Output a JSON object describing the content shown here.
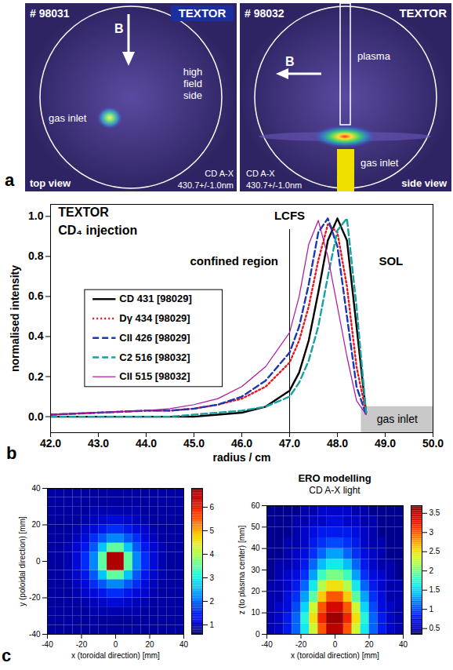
{
  "chart_data": [
    {
      "type": "image",
      "panel": "a",
      "shot": "# 98031",
      "machine": "TEXTOR",
      "field": "B",
      "labels": [
        "gas inlet",
        "high field side"
      ],
      "filter": "CD A-X",
      "wavelength": "430.7+/-1.0nm",
      "view": "top view"
    },
    {
      "type": "image",
      "shot": "# 98032",
      "machine": "TEXTOR",
      "field": "B",
      "labels": [
        "plasma",
        "gas inlet"
      ],
      "filter": "CD A-X",
      "wavelength": "430.7+/-1.0nm",
      "view": "side view"
    },
    {
      "type": "line",
      "panel": "b",
      "annotations": [
        "TEXTOR",
        "CD₄ injection",
        "confined region",
        "SOL"
      ],
      "lcfs": {
        "label": "LCFS",
        "radius": 47.0
      },
      "gas_inlet": {
        "label": "gas inlet",
        "x_range": [
          48.5,
          50.0
        ],
        "top": 0.05
      },
      "xlabel": "radius / cm",
      "ylabel": "normalised intensity",
      "xlim": [
        42,
        50
      ],
      "xticks": [
        {
          "value": 42,
          "label": "42.0"
        },
        {
          "value": 43,
          "label": "43.0"
        },
        {
          "value": 44,
          "label": "44.0"
        },
        {
          "value": 45,
          "label": "45.0"
        },
        {
          "value": 46,
          "label": "46.0"
        },
        {
          "value": 47,
          "label": "47.0"
        },
        {
          "value": 48,
          "label": "48.0"
        },
        {
          "value": 49,
          "label": "49.0"
        },
        {
          "value": 50,
          "label": "50.0"
        }
      ],
      "ylim": [
        -0.08,
        1.06
      ],
      "yticks": [
        {
          "value": 0,
          "label": "0.0"
        },
        0.2,
        0.4,
        0.6,
        0.8,
        {
          "value": 1,
          "label": "1.0"
        }
      ],
      "legend": "center left",
      "x": [
        42,
        43,
        44,
        44.5,
        45,
        45.5,
        46,
        46.5,
        47,
        47.2,
        47.4,
        47.6,
        47.8,
        48.0,
        48.2,
        48.4,
        48.6
      ],
      "series": [
        {
          "name": "CD 431 [98029]",
          "color": "#000000",
          "line_style": "solid",
          "values": [
            0,
            0,
            0,
            0,
            0,
            0.01,
            0.02,
            0.05,
            0.13,
            0.22,
            0.38,
            0.62,
            0.88,
            0.99,
            0.88,
            0.45,
            0.02
          ]
        },
        {
          "name": "Dγ 434 [98029]",
          "color": "#e8141c",
          "line_style": "dotted",
          "values": [
            0.01,
            0.02,
            0.03,
            0.03,
            0.04,
            0.06,
            0.09,
            0.15,
            0.27,
            0.38,
            0.55,
            0.78,
            0.96,
            0.92,
            0.65,
            0.25,
            0.02
          ]
        },
        {
          "name": "CII 426 [98029]",
          "color": "#1c36b8",
          "line_style": "dashed",
          "values": [
            0.01,
            0.02,
            0.03,
            0.03,
            0.04,
            0.06,
            0.1,
            0.18,
            0.32,
            0.45,
            0.66,
            0.92,
            0.99,
            0.85,
            0.5,
            0.15,
            0.01
          ]
        },
        {
          "name": "C2 516 [98032]",
          "color": "#17a0a0",
          "line_style": "dashed",
          "values": [
            0,
            0,
            0,
            0,
            0.01,
            0.02,
            0.03,
            0.05,
            0.1,
            0.17,
            0.28,
            0.45,
            0.7,
            0.93,
            0.99,
            0.55,
            0.02
          ]
        },
        {
          "name": "CII 515 [98032]",
          "color": "#b0129c",
          "line_style": "solid",
          "values": [
            0.01,
            0.02,
            0.03,
            0.04,
            0.06,
            0.09,
            0.15,
            0.25,
            0.42,
            0.6,
            0.86,
            0.98,
            0.8,
            0.55,
            0.3,
            0.08,
            0.01
          ]
        }
      ]
    },
    {
      "type": "heatmap",
      "panel": "c",
      "xlabel": "x (toroidal direction) [mm]",
      "ylabel": "y (poloidal direction) [mm]",
      "xlim": [
        -40,
        40
      ],
      "ylim": [
        -40,
        40
      ],
      "xticks": [
        -40,
        -20,
        0,
        20,
        40
      ],
      "yticks": [
        -40,
        -20,
        0,
        20,
        40
      ],
      "x": [
        -37.5,
        -32.5,
        -27.5,
        -22.5,
        -17.5,
        -12.5,
        -7.5,
        -2.5,
        2.5,
        7.5,
        12.5,
        17.5,
        22.5,
        27.5,
        32.5,
        37.5
      ],
      "y": [
        -37.5,
        -32.5,
        -27.5,
        -22.5,
        -17.5,
        -12.5,
        -7.5,
        -2.5,
        2.5,
        7.5,
        12.5,
        17.5,
        22.5,
        27.5,
        32.5,
        37.5
      ],
      "cells": [
        [
          0.8,
          0.8,
          0.8,
          0.8,
          0.8,
          0.8,
          0.8,
          0.8,
          0.8,
          0.8,
          0.8,
          0.8,
          0.8,
          0.8,
          0.8,
          0.8
        ],
        [
          0.8,
          0.8,
          0.8,
          0.8,
          0.8,
          0.8,
          0.8,
          0.8,
          0.8,
          0.8,
          0.8,
          0.8,
          0.8,
          0.8,
          0.8,
          0.8
        ],
        [
          0.8,
          0.8,
          0.8,
          0.8,
          0.8,
          0.9,
          0.9,
          0.9,
          0.9,
          0.9,
          0.9,
          0.8,
          0.8,
          0.8,
          0.8,
          0.8
        ],
        [
          0.8,
          0.8,
          0.8,
          0.8,
          0.9,
          1.0,
          1.1,
          1.2,
          1.2,
          1.1,
          1.0,
          0.9,
          0.8,
          0.8,
          0.8,
          0.8
        ],
        [
          0.8,
          0.8,
          0.8,
          0.9,
          1.1,
          1.2,
          1.4,
          1.6,
          1.6,
          1.4,
          1.2,
          1.1,
          0.9,
          0.8,
          0.8,
          0.8
        ],
        [
          0.8,
          0.8,
          0.8,
          1.0,
          1.2,
          1.6,
          1.9,
          2.2,
          2.2,
          1.9,
          1.6,
          1.2,
          1.0,
          0.8,
          0.8,
          0.8
        ],
        [
          0.8,
          0.8,
          0.9,
          1.1,
          1.4,
          1.9,
          2.6,
          3.5,
          3.5,
          2.6,
          1.9,
          1.4,
          1.1,
          0.9,
          0.8,
          0.8
        ],
        [
          0.8,
          0.8,
          0.9,
          1.2,
          1.6,
          2.2,
          3.5,
          6.5,
          6.5,
          3.5,
          2.2,
          1.6,
          1.2,
          0.9,
          0.8,
          0.8
        ],
        [
          0.8,
          0.8,
          0.9,
          1.2,
          1.6,
          2.2,
          3.5,
          6.5,
          6.5,
          3.5,
          2.2,
          1.6,
          1.2,
          0.9,
          0.8,
          0.8
        ],
        [
          0.8,
          0.8,
          0.9,
          1.1,
          1.4,
          1.9,
          2.6,
          3.5,
          3.5,
          2.6,
          1.9,
          1.4,
          1.1,
          0.9,
          0.8,
          0.8
        ],
        [
          0.8,
          0.8,
          0.8,
          1.0,
          1.2,
          1.6,
          1.9,
          2.2,
          2.2,
          1.9,
          1.6,
          1.2,
          1.0,
          0.8,
          0.8,
          0.8
        ],
        [
          0.8,
          0.8,
          0.8,
          0.9,
          1.1,
          1.2,
          1.4,
          1.6,
          1.6,
          1.4,
          1.2,
          1.1,
          0.9,
          0.8,
          0.8,
          0.8
        ],
        [
          0.8,
          0.8,
          0.8,
          0.8,
          0.9,
          1.0,
          1.1,
          1.2,
          1.2,
          1.1,
          1.0,
          0.9,
          0.8,
          0.8,
          0.8,
          0.8
        ],
        [
          0.8,
          0.8,
          0.8,
          0.8,
          0.8,
          0.9,
          0.9,
          0.9,
          0.9,
          0.9,
          0.9,
          0.8,
          0.8,
          0.8,
          0.8,
          0.8
        ],
        [
          0.8,
          0.8,
          0.8,
          0.8,
          0.8,
          0.8,
          0.8,
          0.8,
          0.8,
          0.8,
          0.8,
          0.8,
          0.8,
          0.8,
          0.8,
          0.8
        ],
        [
          0.8,
          0.8,
          0.8,
          0.8,
          0.8,
          0.8,
          0.8,
          0.8,
          0.8,
          0.8,
          0.8,
          0.8,
          0.8,
          0.8,
          0.8,
          0.8
        ]
      ],
      "colorbar": {
        "range": [
          0.6,
          6.8
        ],
        "ticks": [
          1,
          2,
          3,
          4,
          5,
          6
        ]
      }
    },
    {
      "type": "heatmap",
      "title": "ERO modelling",
      "subtitle": "CD A-X light",
      "xlabel": "x (toroidal direction) [mm]",
      "ylabel": "z (to plasma center) [mm]",
      "xlim": [
        -40,
        40
      ],
      "ylim": [
        0,
        60
      ],
      "xticks": [
        -40,
        -20,
        0,
        20,
        40
      ],
      "yticks": [
        0,
        10,
        20,
        30,
        40,
        50,
        60
      ],
      "x": [
        -37.5,
        -32.5,
        -27.5,
        -22.5,
        -17.5,
        -12.5,
        -7.5,
        -2.5,
        2.5,
        7.5,
        12.5,
        17.5,
        22.5,
        27.5,
        32.5,
        37.5
      ],
      "y": [
        2.5,
        7.5,
        12.5,
        17.5,
        22.5,
        27.5,
        32.5,
        37.5,
        42.5,
        47.5,
        52.5,
        57.5
      ],
      "cells": [
        [
          0.5,
          0.6,
          0.8,
          1.1,
          1.6,
          2.3,
          3.0,
          3.5,
          3.5,
          3.0,
          2.3,
          1.6,
          1.1,
          0.8,
          0.6,
          0.5
        ],
        [
          0.5,
          0.6,
          0.8,
          1.1,
          1.7,
          2.5,
          3.2,
          3.6,
          3.6,
          3.2,
          2.5,
          1.7,
          1.1,
          0.8,
          0.6,
          0.5
        ],
        [
          0.5,
          0.6,
          0.7,
          1.0,
          1.5,
          2.3,
          3.0,
          3.4,
          3.4,
          3.0,
          2.3,
          1.5,
          1.0,
          0.7,
          0.6,
          0.5
        ],
        [
          0.5,
          0.5,
          0.7,
          0.9,
          1.3,
          1.9,
          2.6,
          3.0,
          3.0,
          2.6,
          1.9,
          1.3,
          0.9,
          0.7,
          0.5,
          0.5
        ],
        [
          0.5,
          0.5,
          0.6,
          0.8,
          1.1,
          1.6,
          2.2,
          2.5,
          2.5,
          2.2,
          1.6,
          1.1,
          0.8,
          0.6,
          0.5,
          0.5
        ],
        [
          0.4,
          0.5,
          0.6,
          0.7,
          0.9,
          1.3,
          1.8,
          2.0,
          2.0,
          1.8,
          1.3,
          0.9,
          0.7,
          0.6,
          0.5,
          0.4
        ],
        [
          0.4,
          0.5,
          0.5,
          0.6,
          0.8,
          1.1,
          1.4,
          1.6,
          1.6,
          1.4,
          1.1,
          0.8,
          0.6,
          0.5,
          0.5,
          0.4
        ],
        [
          0.4,
          0.4,
          0.5,
          0.6,
          0.7,
          0.9,
          1.1,
          1.3,
          1.3,
          1.1,
          0.9,
          0.7,
          0.6,
          0.5,
          0.4,
          0.4
        ],
        [
          0.4,
          0.4,
          0.5,
          0.5,
          0.6,
          0.8,
          0.9,
          1.0,
          1.0,
          0.9,
          0.8,
          0.6,
          0.5,
          0.5,
          0.4,
          0.4
        ],
        [
          0.4,
          0.4,
          0.4,
          0.5,
          0.6,
          0.7,
          0.8,
          0.8,
          0.8,
          0.8,
          0.7,
          0.6,
          0.5,
          0.4,
          0.4,
          0.4
        ],
        [
          0.4,
          0.4,
          0.4,
          0.5,
          0.5,
          0.6,
          0.6,
          0.7,
          0.7,
          0.6,
          0.6,
          0.5,
          0.5,
          0.4,
          0.4,
          0.4
        ],
        [
          0.4,
          0.4,
          0.4,
          0.4,
          0.5,
          0.5,
          0.6,
          0.6,
          0.6,
          0.6,
          0.5,
          0.5,
          0.4,
          0.4,
          0.4,
          0.4
        ]
      ],
      "colorbar": {
        "range": [
          0.35,
          3.7
        ],
        "ticks": [
          0.5,
          1,
          1.5,
          2,
          2.5,
          3,
          3.5
        ]
      }
    }
  ]
}
